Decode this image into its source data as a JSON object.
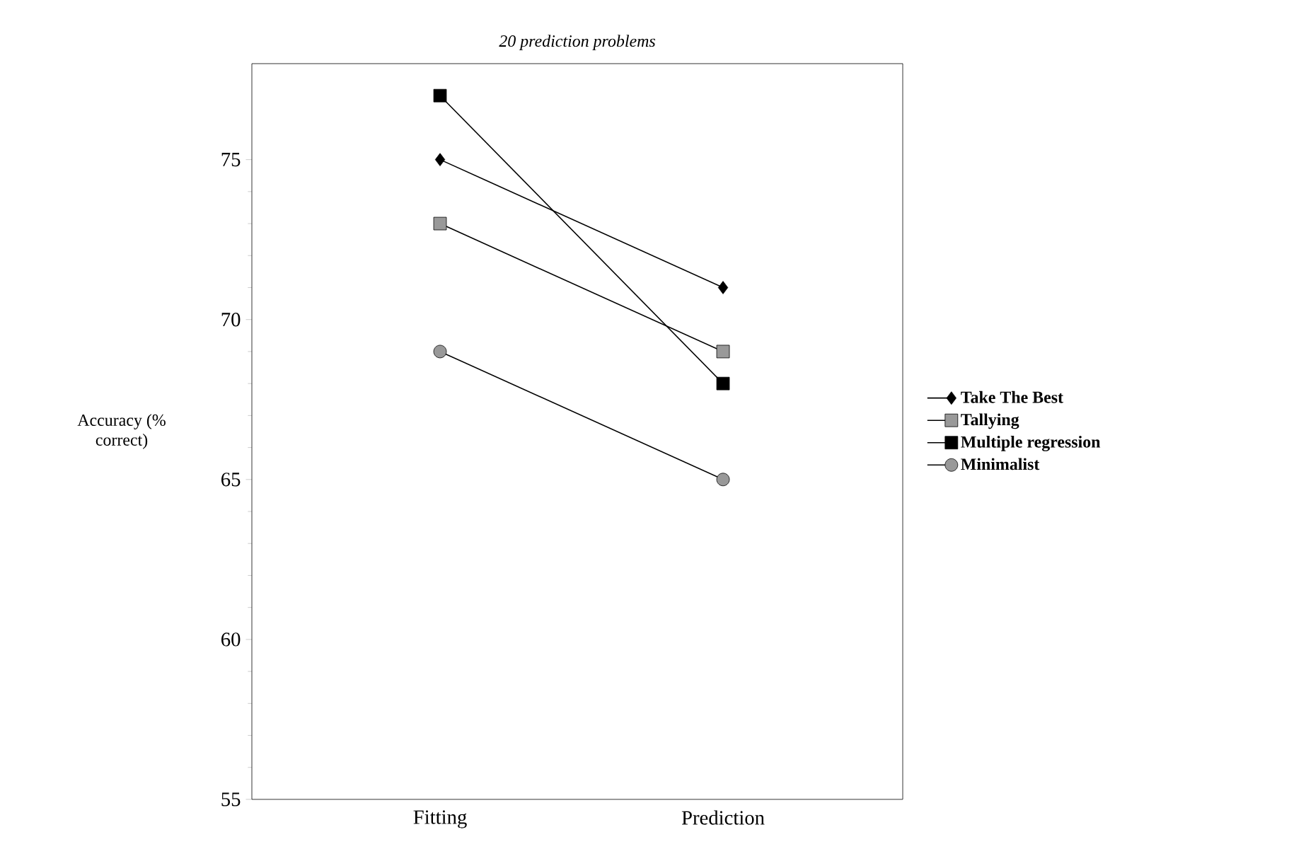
{
  "chart_data": {
    "type": "line",
    "title": "20 prediction problems",
    "ylabel": "Accuracy (% correct)",
    "categories": [
      "Fitting",
      "Prediction"
    ],
    "series": [
      {
        "name": "Take The Best",
        "color": "#000000",
        "marker": "diamond",
        "values": [
          75,
          71
        ]
      },
      {
        "name": "Tallying",
        "color": "#999999",
        "marker": "square",
        "values": [
          73,
          69
        ]
      },
      {
        "name": "Multiple regression",
        "color": "#000000",
        "marker": "square",
        "values": [
          77,
          68
        ]
      },
      {
        "name": "Minimalist",
        "color": "#999999",
        "marker": "circle",
        "values": [
          69,
          65
        ]
      }
    ],
    "ylim": [
      55,
      78
    ],
    "yticks": [
      55,
      60,
      65,
      70,
      75
    ],
    "grid": false,
    "legend": "right",
    "line_style": "solid"
  }
}
